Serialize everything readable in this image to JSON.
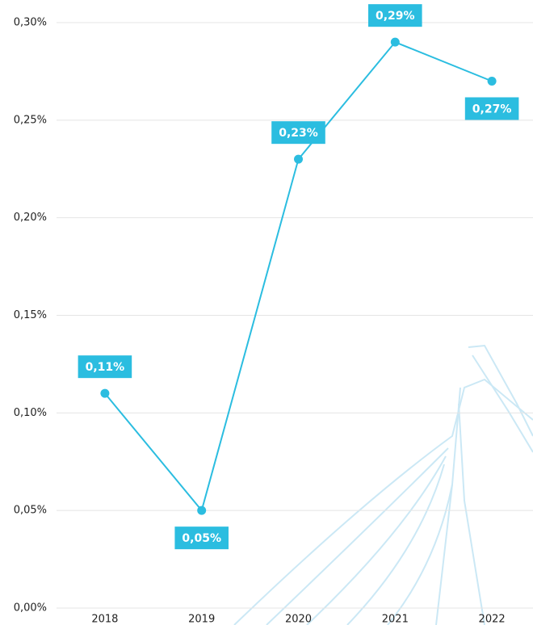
{
  "chart_data": {
    "type": "line",
    "categories": [
      "2018",
      "2019",
      "2020",
      "2021",
      "2022"
    ],
    "series": [
      {
        "color": "#2bbde0",
        "values": [
          0.11,
          0.05,
          0.23,
          0.29,
          0.27
        ],
        "value_labels": [
          "0,11%",
          "0,05%",
          "0,23%",
          "0,29%",
          "0,27%"
        ]
      }
    ],
    "ylim": [
      0,
      0.3
    ],
    "yticks": [
      {
        "value": 0,
        "label": "0,00%"
      },
      {
        "value": 0.05,
        "label": "0,05%"
      },
      {
        "value": 0.1,
        "label": "0,10%"
      },
      {
        "value": 0.15,
        "label": "0,15%"
      },
      {
        "value": 0.2,
        "label": "0,20%"
      },
      {
        "value": 0.25,
        "label": "0,25%"
      },
      {
        "value": 0.3,
        "label": "0,30%"
      }
    ],
    "grid": true
  }
}
